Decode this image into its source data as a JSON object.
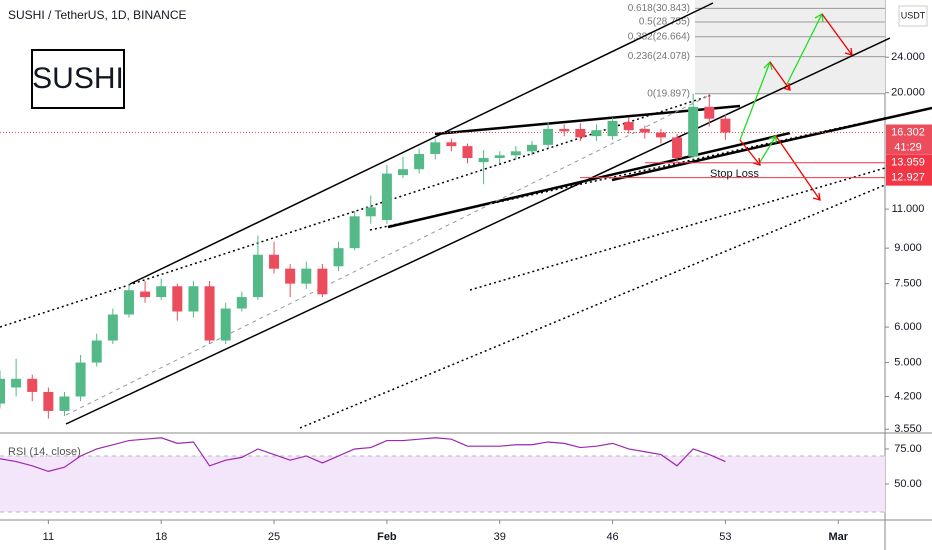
{
  "chart_data": [
    {
      "type": "candlestick",
      "title": "SUSHI / TetherUS, 1D, BINANCE",
      "annotation": "SUSHI",
      "unit": "USDT",
      "x": [
        8,
        9,
        10,
        11,
        12,
        13,
        14,
        15,
        16,
        17,
        18,
        19,
        20,
        21,
        22,
        23,
        24,
        25,
        26,
        27,
        28,
        29,
        30,
        31,
        32,
        33,
        34,
        35,
        36,
        37,
        38,
        39,
        40,
        41,
        42,
        43,
        44,
        45,
        46,
        47,
        48,
        49,
        50,
        51,
        52,
        53
      ],
      "open": [
        4.05,
        4.4,
        4.6,
        4.3,
        3.9,
        4.2,
        5.0,
        5.6,
        6.4,
        7.2,
        7.0,
        7.4,
        6.5,
        7.4,
        5.6,
        6.6,
        7.0,
        8.7,
        8.1,
        7.5,
        8.1,
        8.2,
        9.0,
        10.6,
        10.4,
        13.1,
        13.5,
        14.6,
        15.5,
        15.2,
        14.0,
        14.3,
        14.5,
        14.8,
        15.3,
        16.6,
        16.6,
        16.0,
        16.0,
        17.2,
        16.6,
        16.3,
        15.9,
        14.4,
        18.6,
        17.5
      ],
      "high": [
        4.8,
        5.1,
        4.7,
        4.4,
        4.3,
        5.2,
        5.8,
        6.6,
        7.5,
        7.6,
        7.7,
        7.5,
        7.6,
        7.6,
        6.8,
        7.2,
        9.6,
        9.3,
        8.3,
        8.4,
        8.3,
        9.3,
        10.9,
        11.8,
        13.8,
        14.4,
        15.0,
        15.8,
        15.8,
        15.4,
        14.9,
        14.8,
        15.2,
        15.6,
        17.2,
        17.0,
        17.1,
        17.0,
        17.6,
        17.6,
        16.9,
        16.6,
        16.2,
        19.9,
        19.9,
        17.9
      ],
      "low": [
        3.95,
        4.2,
        4.1,
        3.75,
        3.8,
        4.1,
        4.9,
        5.5,
        6.3,
        6.8,
        6.9,
        6.2,
        6.3,
        5.5,
        5.5,
        6.5,
        6.9,
        7.9,
        7.0,
        7.3,
        7.0,
        8.0,
        8.9,
        10.2,
        10.2,
        12.9,
        13.2,
        14.2,
        14.8,
        13.9,
        12.5,
        13.9,
        14.2,
        14.5,
        15.1,
        16.0,
        15.6,
        15.6,
        15.7,
        16.2,
        15.8,
        15.4,
        14.0,
        14.2,
        16.8,
        15.7
      ],
      "close": [
        4.6,
        4.6,
        4.3,
        3.9,
        4.2,
        5.0,
        5.6,
        6.4,
        7.25,
        7.0,
        7.4,
        6.5,
        7.4,
        5.6,
        6.6,
        7.0,
        8.7,
        8.1,
        7.5,
        8.1,
        7.1,
        9.0,
        10.6,
        11.1,
        13.2,
        13.5,
        14.6,
        15.5,
        15.2,
        14.3,
        14.3,
        14.5,
        14.8,
        15.3,
        16.6,
        16.4,
        15.9,
        16.5,
        17.3,
        16.5,
        16.3,
        15.9,
        14.3,
        18.6,
        17.5,
        16.3
      ],
      "up_color": "#53b987",
      "down_color": "#eb4d5c",
      "log_scale": true,
      "ylim": [
        3.5,
        32.2
      ],
      "yticks": [
        {
          "value": 24,
          "label": "24.000"
        },
        {
          "value": 20,
          "label": "20.000"
        },
        {
          "value": 11,
          "label": "11.000"
        },
        {
          "value": 9,
          "label": "9.000"
        },
        {
          "value": 7.5,
          "label": "7.500"
        },
        {
          "value": 6,
          "label": "6.000"
        },
        {
          "value": 5,
          "label": "5.000"
        },
        {
          "value": 4.2,
          "label": "4.200"
        },
        {
          "value": 3.55,
          "label": "3.550"
        }
      ],
      "xlim": [
        8,
        62.9
      ],
      "xticks": [
        11,
        18,
        25,
        {
          "value": 32,
          "label": "Feb"
        },
        39,
        46,
        53,
        {
          "value": 60,
          "label": "Mar"
        }
      ],
      "last_price": {
        "value": 16.302,
        "label": "16.302"
      },
      "countdown": "41:29",
      "price_lines": [
        {
          "value": 13.959,
          "label": "13.959"
        },
        {
          "value": 12.927,
          "label": "12.927"
        }
      ],
      "stop_loss": "Stop Loss",
      "fib_levels": [
        {
          "value": 30.843,
          "label": "0.618(30.843)"
        },
        {
          "value": 28.755,
          "label": "0.5(28.755)"
        },
        {
          "value": 26.664,
          "label": "0.382(26.664)"
        },
        {
          "value": 24.078,
          "label": "0.236(24.078)"
        },
        {
          "value": 19.897,
          "label": "0(19.897)"
        }
      ]
    },
    {
      "type": "line",
      "title": "RSI (14, close)",
      "color": "#9c27b0",
      "x": [
        8,
        9,
        10,
        11,
        12,
        13,
        14,
        15,
        16,
        17,
        18,
        19,
        20,
        21,
        22,
        23,
        24,
        25,
        26,
        27,
        28,
        29,
        30,
        31,
        32,
        33,
        34,
        35,
        36,
        37,
        38,
        39,
        40,
        41,
        42,
        43,
        44,
        45,
        46,
        47,
        48,
        49,
        50,
        51,
        52,
        53
      ],
      "values": [
        68,
        66,
        63,
        59,
        62,
        70,
        75,
        78,
        81,
        82,
        83,
        79,
        80,
        63,
        67,
        69,
        75,
        71,
        67,
        70,
        65,
        70,
        75,
        76,
        81,
        81,
        82,
        83,
        82,
        77,
        77,
        77,
        78,
        78,
        80,
        79,
        76,
        77,
        79,
        75,
        73,
        71,
        63,
        75,
        71,
        66
      ],
      "band": [
        30,
        70
      ],
      "ylim": [
        24.3,
        86.4
      ],
      "yticks": [
        {
          "value": 75,
          "label": "75.00"
        },
        {
          "value": 50,
          "label": "50.00"
        }
      ]
    }
  ]
}
